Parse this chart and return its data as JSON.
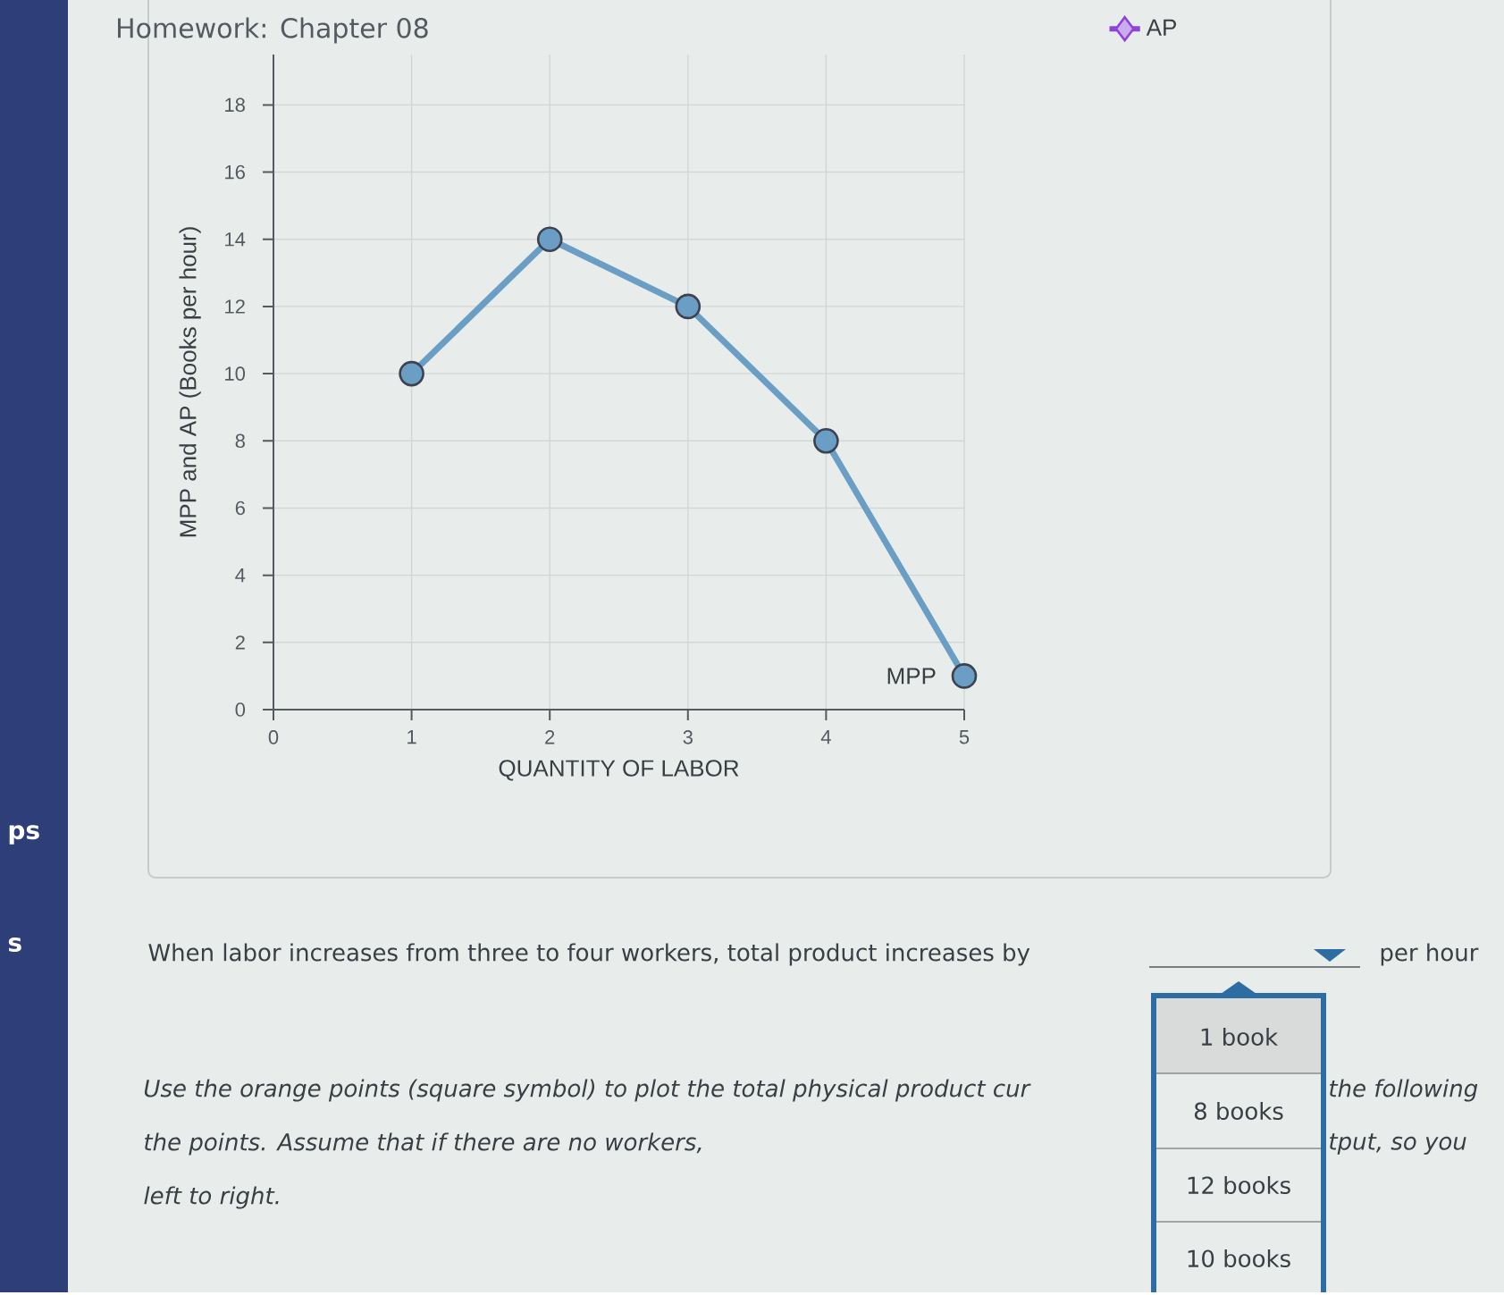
{
  "chart_data": {
    "type": "line",
    "title": "Homework: Chapter 08",
    "xlabel": "QUANTITY OF LABOR",
    "ylabel": "MPP and AP (Books per hour)",
    "x": [
      1,
      2,
      3,
      4,
      5
    ],
    "series": [
      {
        "name": "MPP",
        "color": "#6b9ec4",
        "values": [
          10,
          14,
          12,
          8,
          1
        ]
      },
      {
        "name": "AP",
        "color": "#8e44d8",
        "marker": "diamond",
        "values": [
          null,
          null,
          null,
          null,
          null
        ]
      }
    ],
    "xlim": [
      0,
      5
    ],
    "xticks": [
      0,
      1,
      2,
      3,
      4,
      5
    ],
    "ylim": [
      0,
      19.5
    ],
    "yticks": [
      0,
      2,
      4,
      6,
      8,
      10,
      12,
      14,
      16,
      18
    ],
    "grid": true,
    "legend": "top right",
    "marker": "circle",
    "line_style": "solid",
    "annotations": [
      "When labor increases from three to four workers, total product increases by",
      "per hour",
      "1 book",
      "8 books",
      "12 books",
      "10 books",
      "Use the orange points (square symbol) to plot the total physical product cur",
      "the following",
      "the points. Assume that if there are no workers,",
      "tput, so you",
      "left to right.",
      "ps",
      "s"
    ]
  }
}
